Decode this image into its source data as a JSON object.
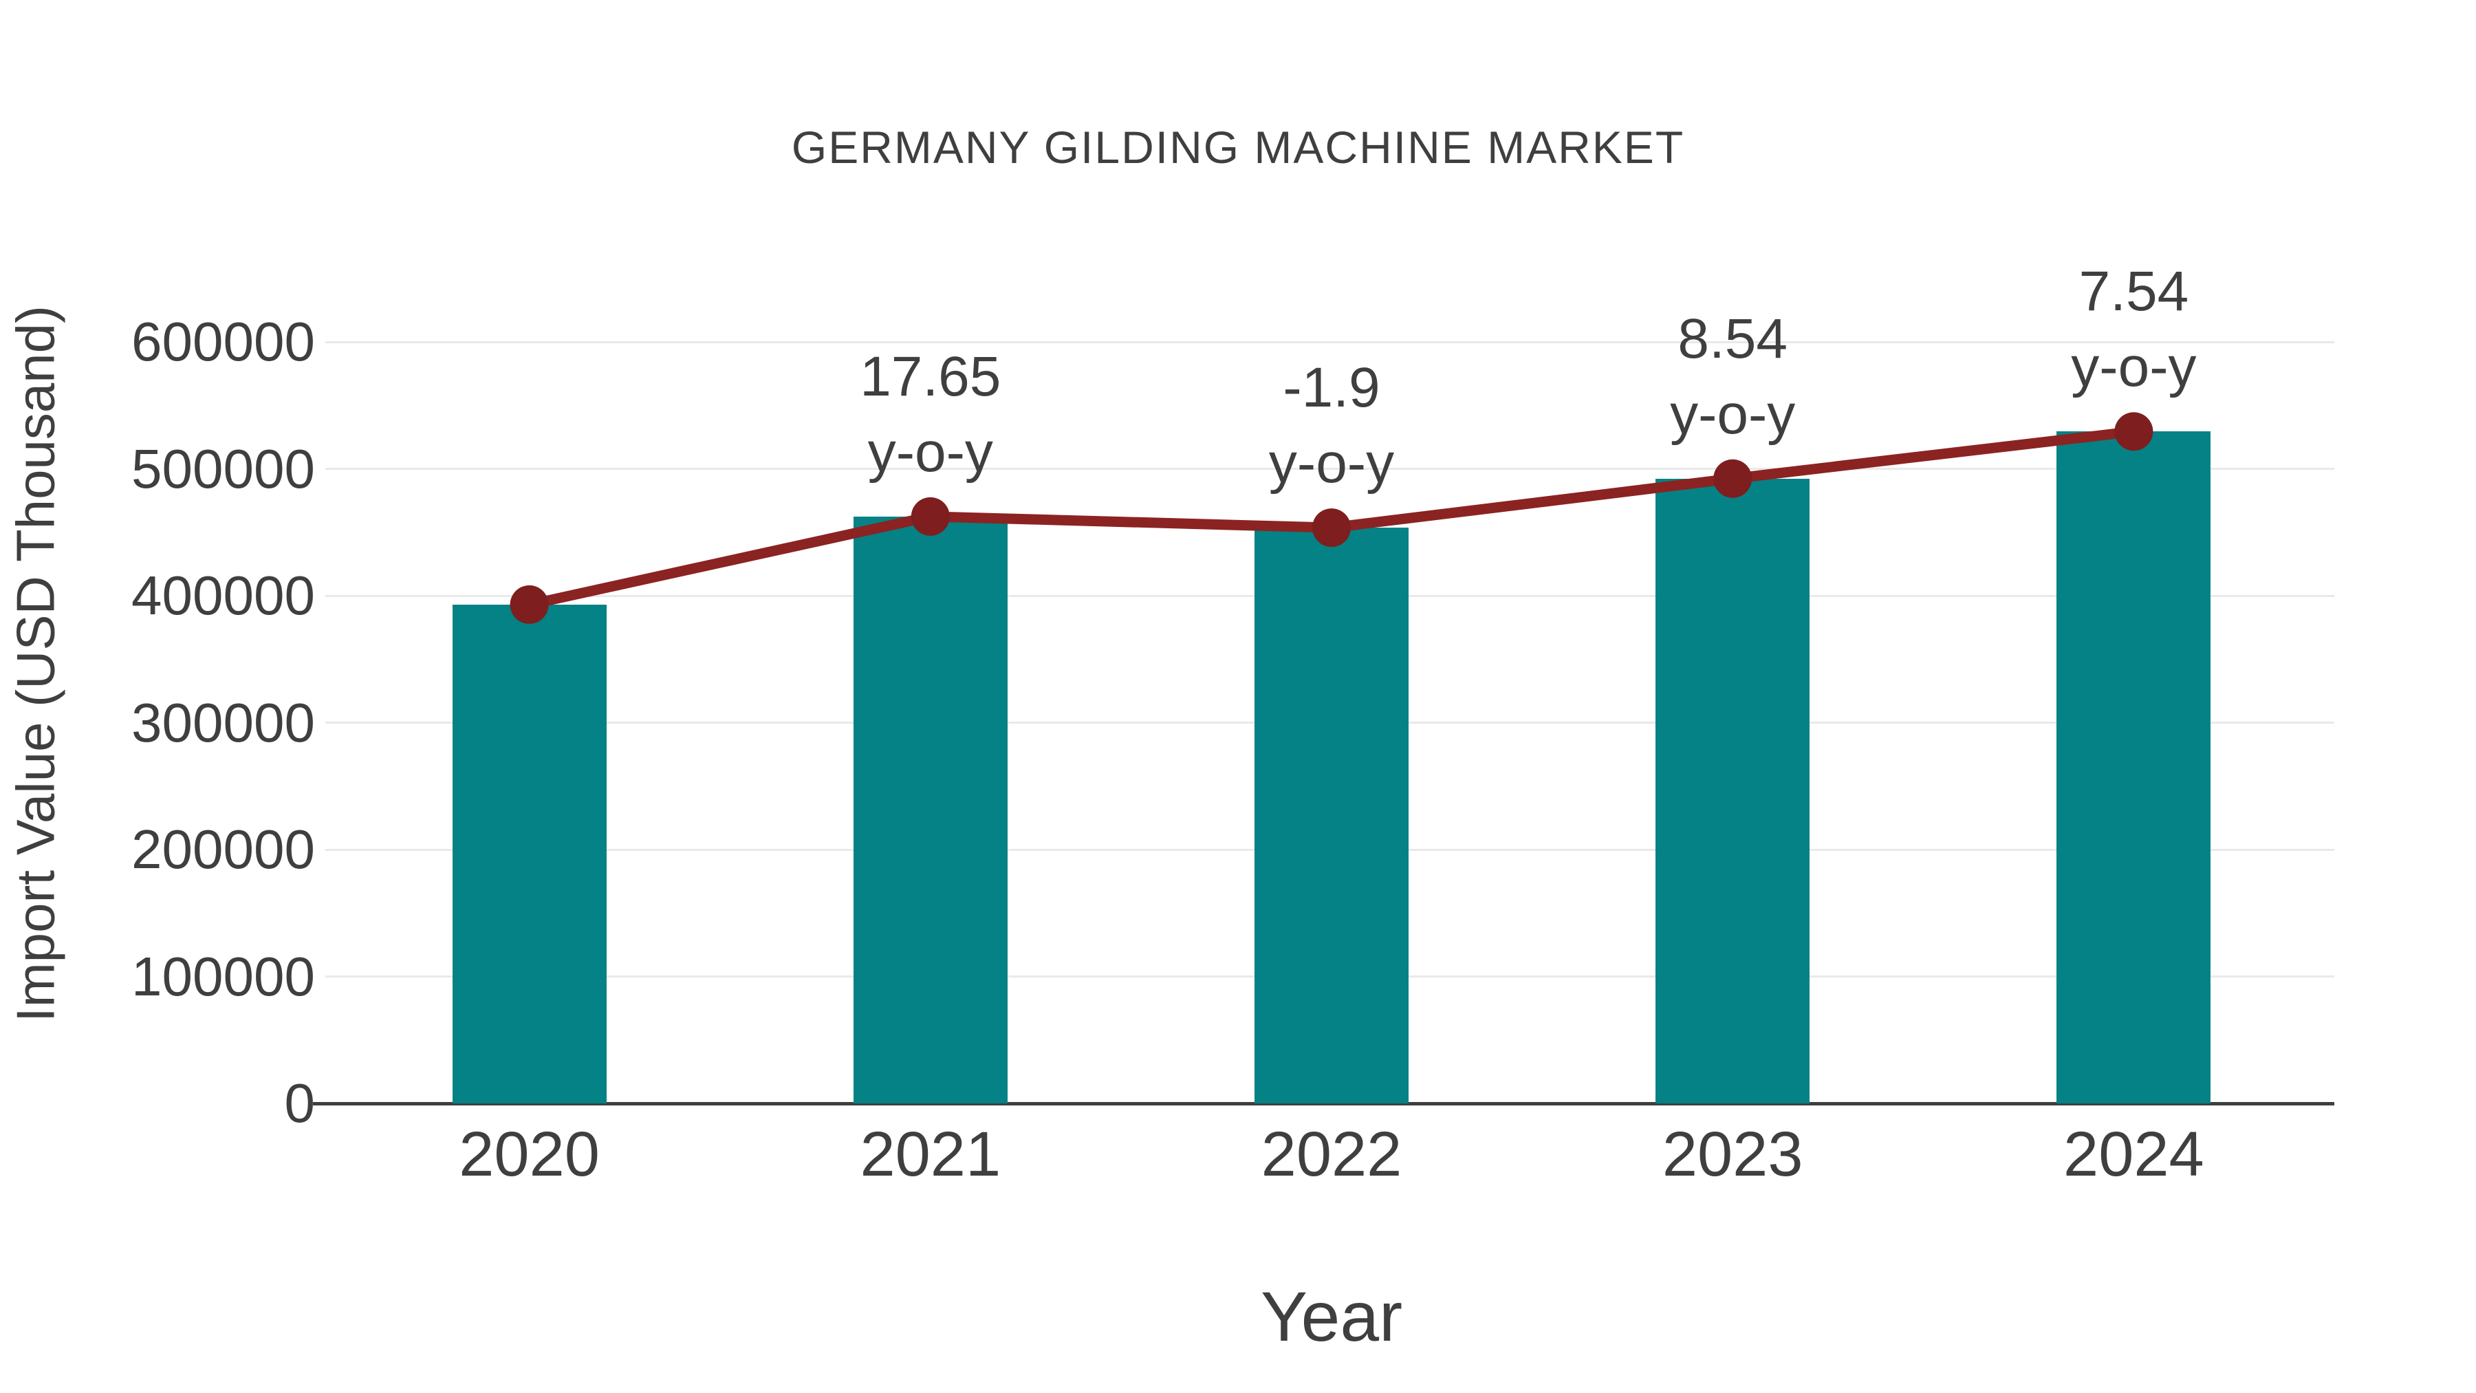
{
  "chart_data": {
    "type": "bar",
    "title": "GERMANY GILDING MACHINE MARKET",
    "xlabel": "Year",
    "ylabel": "Import Value (USD Thousand)",
    "categories": [
      "2020",
      "2021",
      "2022",
      "2023",
      "2024"
    ],
    "series": [
      {
        "name": "Import Value (USD Thousand)",
        "type": "bar",
        "values": [
          393000,
          462400,
          453600,
          492300,
          529400
        ]
      },
      {
        "name": "y-o-y growth (%)",
        "type": "line",
        "values": [
          null,
          17.65,
          -1.9,
          8.54,
          7.54
        ]
      }
    ],
    "point_labels": [
      {
        "value": "",
        "unit": ""
      },
      {
        "value": "17.65",
        "unit": "y-o-y"
      },
      {
        "value": "-1.9",
        "unit": "y-o-y"
      },
      {
        "value": "8.54",
        "unit": "y-o-y"
      },
      {
        "value": "7.54",
        "unit": "y-o-y"
      }
    ],
    "yticks": [
      {
        "value": 0,
        "label": "0"
      },
      {
        "value": 100000,
        "label": "100000"
      },
      {
        "value": 200000,
        "label": "200000"
      },
      {
        "value": 300000,
        "label": "300000"
      },
      {
        "value": 400000,
        "label": "400000"
      },
      {
        "value": 500000,
        "label": "500000"
      },
      {
        "value": 600000,
        "label": "600000"
      }
    ],
    "ylim": [
      0,
      600000
    ],
    "grid": "horizontal",
    "legend_position": "none"
  },
  "colors": {
    "bar": "#058285",
    "line": "#8b2322",
    "marker": "#7e1e1e",
    "grid": "#e9e9e9",
    "axis": "#3f3f3f",
    "text": "#3f3f3f",
    "background": "#ffffff"
  }
}
